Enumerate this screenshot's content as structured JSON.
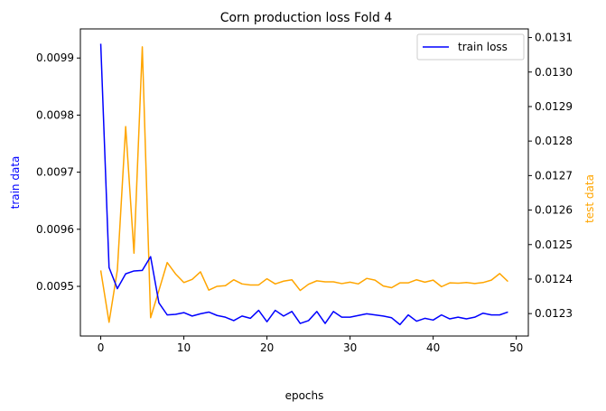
{
  "chart_data": {
    "type": "line",
    "title": "Corn production loss Fold 4",
    "xlabel": "epochs",
    "ylabel_left": "train data",
    "ylabel_right": "test data",
    "xlim": [
      -2.45,
      51.45
    ],
    "ylim_left": [
      0.009413,
      0.009951
    ],
    "ylim_right": [
      0.012235,
      0.013125
    ],
    "x_ticks": [
      0,
      10,
      20,
      30,
      40,
      50
    ],
    "y_ticks_left": [
      0.0095,
      0.0096,
      0.0097,
      0.0098,
      0.0099
    ],
    "y_ticks_left_labels": [
      "0.0095",
      "0.0096",
      "0.0097",
      "0.0098",
      "0.0099"
    ],
    "y_ticks_right": [
      0.0123,
      0.0124,
      0.0125,
      0.0126,
      0.0127,
      0.0128,
      0.0129,
      0.013,
      0.0131
    ],
    "y_ticks_right_labels": [
      "0.0123",
      "0.0124",
      "0.0125",
      "0.0126",
      "0.0127",
      "0.0128",
      "0.0129",
      "0.0130",
      "0.0131"
    ],
    "legend_position": "top-right",
    "legend": [
      "train loss"
    ],
    "grid": false,
    "colors": {
      "train": "#0000ff",
      "test": "#ffa500"
    },
    "x": [
      0,
      1,
      2,
      3,
      4,
      5,
      6,
      7,
      8,
      9,
      10,
      11,
      12,
      13,
      14,
      15,
      16,
      17,
      18,
      19,
      20,
      21,
      22,
      23,
      24,
      25,
      26,
      27,
      28,
      29,
      30,
      31,
      32,
      33,
      34,
      35,
      36,
      37,
      38,
      39,
      40,
      41,
      42,
      43,
      44,
      45,
      46,
      47,
      48,
      49
    ],
    "series": [
      {
        "name": "train loss",
        "axis": "left",
        "values": [
          0.009925,
          0.009533,
          0.009496,
          0.009522,
          0.009527,
          0.009528,
          0.009552,
          0.009471,
          0.00945,
          0.009451,
          0.009454,
          0.009448,
          0.009452,
          0.009455,
          0.009449,
          0.009446,
          0.00944,
          0.009448,
          0.009444,
          0.009458,
          0.009438,
          0.009458,
          0.009448,
          0.009456,
          0.009435,
          0.00944,
          0.009456,
          0.009435,
          0.009456,
          0.009446,
          0.009446,
          0.009449,
          0.009452,
          0.00945,
          0.009448,
          0.009445,
          0.009433,
          0.00945,
          0.009439,
          0.009444,
          0.009441,
          0.00945,
          0.009443,
          0.009446,
          0.009443,
          0.009446,
          0.009453,
          0.00945,
          0.00945,
          0.009455
        ]
      },
      {
        "axis": "right",
        "values": [
          0.012425,
          0.012275,
          0.012426,
          0.012842,
          0.012475,
          0.013073,
          0.012288,
          0.012367,
          0.012448,
          0.012415,
          0.01239,
          0.012399,
          0.012421,
          0.012368,
          0.012379,
          0.012381,
          0.012398,
          0.012386,
          0.012383,
          0.012383,
          0.012401,
          0.012386,
          0.012394,
          0.012398,
          0.012367,
          0.012385,
          0.012395,
          0.012392,
          0.012392,
          0.012387,
          0.012391,
          0.012386,
          0.012402,
          0.012397,
          0.01238,
          0.012375,
          0.012389,
          0.012389,
          0.012398,
          0.012391,
          0.012397,
          0.012378,
          0.012389,
          0.012388,
          0.01239,
          0.012387,
          0.01239,
          0.012397,
          0.012416,
          0.012393
        ]
      }
    ]
  }
}
